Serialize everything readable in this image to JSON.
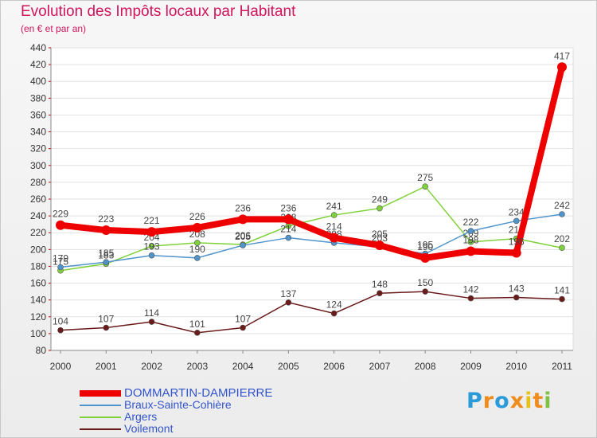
{
  "header": {
    "title": "Evolution des Impôts locaux par Habitant",
    "subtitle": "(en € et par an)"
  },
  "chart_data": {
    "type": "line",
    "title": "Evolution des Impôts locaux par Habitant",
    "subtitle": "(en € et par an)",
    "xlabel": "",
    "ylabel": "",
    "x": [
      "2000",
      "2001",
      "2002",
      "2003",
      "2004",
      "2005",
      "2006",
      "2007",
      "2008",
      "2009",
      "2010",
      "2011"
    ],
    "ylim": [
      80,
      440
    ],
    "y_ticks": [
      80,
      100,
      120,
      140,
      160,
      180,
      200,
      220,
      240,
      260,
      280,
      300,
      320,
      340,
      360,
      380,
      400,
      420,
      440
    ],
    "grid": "horizontal",
    "legend_position": "bottom-left",
    "series": [
      {
        "name": "DOMMARTIN-DAMPIERRE",
        "color": "#ee0000",
        "values": [
          229,
          223,
          221,
          226,
          236,
          236,
          214,
          205,
          190,
          198,
          196,
          417
        ],
        "labels": [
          "229",
          "223",
          "221",
          "226",
          "236",
          "236",
          "214",
          "205",
          "190",
          "198",
          "196",
          "417"
        ]
      },
      {
        "name": "Braux-Sainte-Cohière",
        "color": "#4f94cd",
        "values": [
          179,
          185,
          193,
          190,
          205,
          214,
          208,
          203,
          195,
          222,
          234,
          242
        ],
        "labels": [
          "179",
          "185",
          "193",
          "190",
          "205",
          "214",
          "208",
          "203",
          "195",
          "222",
          "234",
          "242"
        ]
      },
      {
        "name": "Argers",
        "color": "#7fd23a",
        "values": [
          175,
          183,
          204,
          208,
          206,
          228,
          241,
          249,
          275,
          209,
          213,
          202
        ],
        "labels": [
          "175",
          "183",
          "204",
          "208",
          "206",
          "228",
          "241",
          "249",
          "275",
          "209",
          "213",
          "202"
        ]
      },
      {
        "name": "Voilemont",
        "color": "#6b1a1a",
        "values": [
          104,
          107,
          114,
          101,
          107,
          137,
          124,
          148,
          150,
          142,
          143,
          141
        ],
        "labels": [
          "104",
          "107",
          "114",
          "101",
          "107",
          "137",
          "124",
          "148",
          "150",
          "142",
          "143",
          "141"
        ]
      }
    ]
  },
  "brand": {
    "letters": [
      "P",
      "r",
      "o",
      "x",
      "i",
      "t",
      "i"
    ],
    "colors": [
      "#2a9bd8",
      "#f08c1c",
      "#2a9bd8",
      "#f08c1c",
      "#e8c21a",
      "#f08c1c",
      "#7dc242"
    ]
  }
}
